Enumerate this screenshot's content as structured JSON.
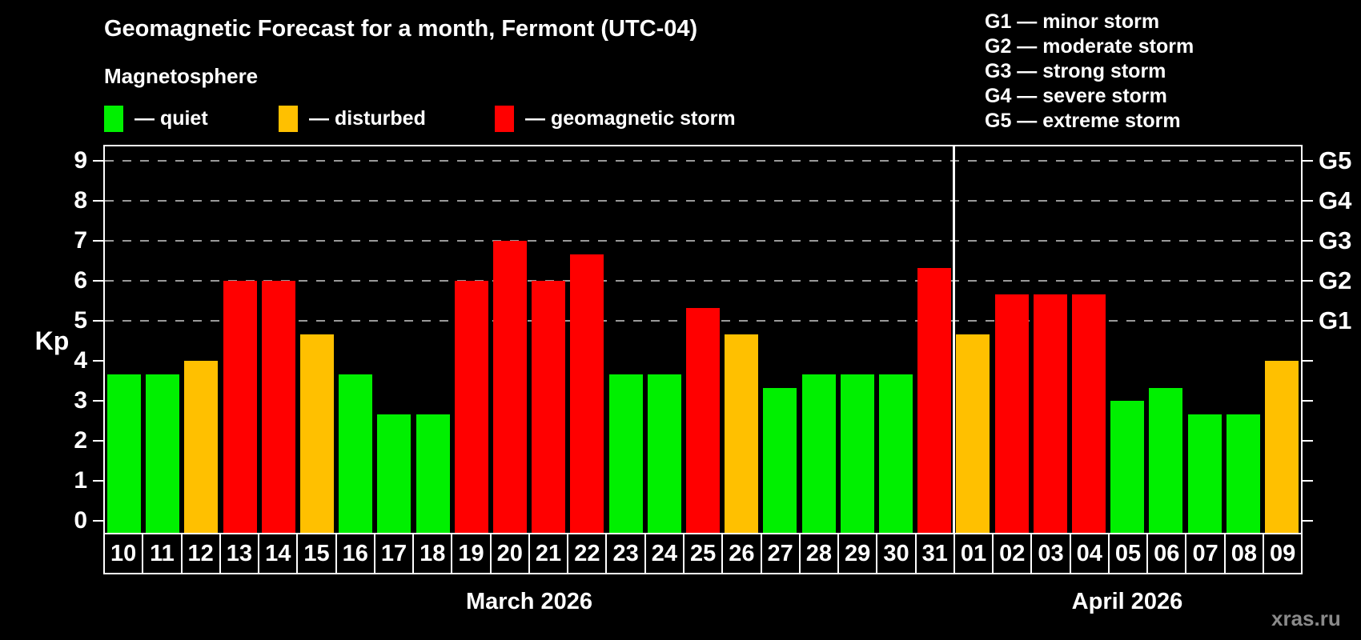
{
  "title": "Geomagnetic Forecast for a month, Fermont (UTC-04)",
  "subtitle": "Magnetosphere",
  "legend": {
    "items": [
      {
        "key": "quiet",
        "label": "— quiet",
        "color": "#00f000",
        "offset_x": 0
      },
      {
        "key": "disturbed",
        "label": "— disturbed",
        "color": "#ffc000",
        "offset_x": 218
      },
      {
        "key": "storm",
        "label": "— geomagnetic storm",
        "color": "#ff0000",
        "offset_x": 488
      }
    ]
  },
  "g_scale_legend": {
    "lines": [
      "G1 — minor storm",
      "G2 — moderate storm",
      "G3 — strong storm",
      "G4 — severe storm",
      "G5 — extreme storm"
    ]
  },
  "axis": {
    "y_title": "Kp",
    "left_tick_values": [
      0,
      1,
      2,
      3,
      4,
      5,
      6,
      7,
      8,
      9
    ],
    "right_tick_values": [
      0,
      1,
      2,
      3,
      4,
      5,
      6,
      7,
      8,
      9
    ],
    "gridline_values": [
      5,
      6,
      7,
      8,
      9
    ],
    "right_labels": [
      {
        "value": 5,
        "label": "G1"
      },
      {
        "value": 6,
        "label": "G2"
      },
      {
        "value": 7,
        "label": "G3"
      },
      {
        "value": 8,
        "label": "G4"
      },
      {
        "value": 9,
        "label": "G5"
      }
    ]
  },
  "months": {
    "march": {
      "label": "March 2026",
      "days": 22
    },
    "april": {
      "label": "April 2026",
      "days": 9
    }
  },
  "watermark": "xras.ru",
  "chart_data": {
    "type": "bar",
    "title": "Geomagnetic Forecast for a month, Fermont (UTC-04)",
    "subtitle": "Magnetosphere",
    "ylabel": "Kp",
    "ylim": [
      0,
      9
    ],
    "grid": "dashed horizontal at Kp 5-9 (G1-G5)",
    "legend_position": "top-left",
    "categories": [
      "10",
      "11",
      "12",
      "13",
      "14",
      "15",
      "16",
      "17",
      "18",
      "19",
      "20",
      "21",
      "22",
      "23",
      "24",
      "25",
      "26",
      "27",
      "28",
      "29",
      "30",
      "31",
      "01",
      "02",
      "03",
      "04",
      "05",
      "06",
      "07",
      "08",
      "09"
    ],
    "month_of_category": [
      "Mar",
      "Mar",
      "Mar",
      "Mar",
      "Mar",
      "Mar",
      "Mar",
      "Mar",
      "Mar",
      "Mar",
      "Mar",
      "Mar",
      "Mar",
      "Mar",
      "Mar",
      "Mar",
      "Mar",
      "Mar",
      "Mar",
      "Mar",
      "Mar",
      "Mar",
      "Apr",
      "Apr",
      "Apr",
      "Apr",
      "Apr",
      "Apr",
      "Apr",
      "Apr",
      "Apr"
    ],
    "values": [
      3.67,
      3.67,
      4.0,
      6.0,
      6.0,
      4.67,
      3.67,
      2.67,
      2.67,
      6.0,
      7.0,
      6.0,
      6.67,
      3.67,
      3.67,
      5.33,
      4.67,
      3.33,
      3.67,
      3.67,
      3.67,
      6.33,
      4.67,
      5.67,
      5.67,
      5.67,
      3.0,
      3.33,
      2.67,
      2.67,
      4.0
    ],
    "statuses": [
      "quiet",
      "quiet",
      "disturbed",
      "storm",
      "storm",
      "disturbed",
      "quiet",
      "quiet",
      "quiet",
      "storm",
      "storm",
      "storm",
      "storm",
      "quiet",
      "quiet",
      "storm",
      "disturbed",
      "quiet",
      "quiet",
      "quiet",
      "quiet",
      "storm",
      "disturbed",
      "storm",
      "storm",
      "storm",
      "quiet",
      "quiet",
      "quiet",
      "quiet",
      "disturbed"
    ],
    "status_colors": {
      "quiet": "#00f000",
      "disturbed": "#ffc000",
      "storm": "#ff0000"
    }
  }
}
